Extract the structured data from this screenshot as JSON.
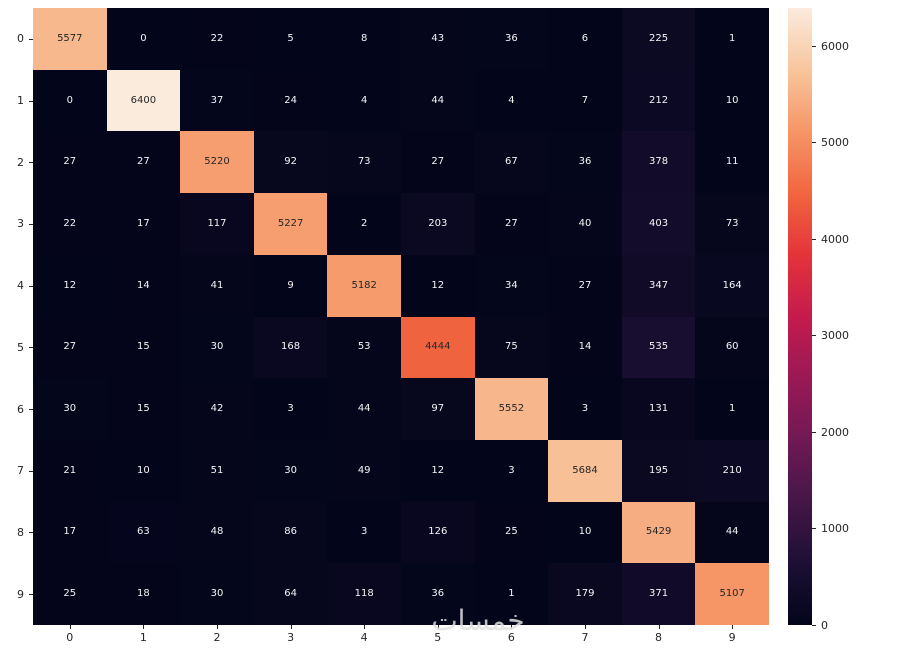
{
  "chart_data": {
    "type": "heatmap",
    "title": "",
    "xlabel": "",
    "ylabel": "",
    "x_labels": [
      "0",
      "1",
      "2",
      "3",
      "4",
      "5",
      "6",
      "7",
      "8",
      "9"
    ],
    "y_labels": [
      "0",
      "1",
      "2",
      "3",
      "4",
      "5",
      "6",
      "7",
      "8",
      "9"
    ],
    "matrix": [
      [
        5577,
        0,
        22,
        5,
        8,
        43,
        36,
        6,
        225,
        1
      ],
      [
        0,
        6400,
        37,
        24,
        4,
        44,
        4,
        7,
        212,
        10
      ],
      [
        27,
        27,
        5220,
        92,
        73,
        27,
        67,
        36,
        378,
        11
      ],
      [
        22,
        17,
        117,
        5227,
        2,
        203,
        27,
        40,
        403,
        73
      ],
      [
        12,
        14,
        41,
        9,
        5182,
        12,
        34,
        27,
        347,
        164
      ],
      [
        27,
        15,
        30,
        168,
        53,
        4444,
        75,
        14,
        535,
        60
      ],
      [
        30,
        15,
        42,
        3,
        44,
        97,
        5552,
        3,
        131,
        1
      ],
      [
        21,
        10,
        51,
        30,
        49,
        12,
        3,
        5684,
        195,
        210
      ],
      [
        17,
        63,
        48,
        86,
        3,
        126,
        25,
        10,
        5429,
        44
      ],
      [
        25,
        18,
        30,
        64,
        118,
        36,
        1,
        179,
        371,
        5107
      ]
    ],
    "vmin": 0,
    "vmax": 6400,
    "colorbar_ticks": [
      0,
      1000,
      2000,
      3000,
      4000,
      5000,
      6000
    ],
    "colormap": "rocket",
    "colormap_stops": [
      [
        0.0,
        3,
        5,
        26
      ],
      [
        0.1,
        28,
        16,
        52
      ],
      [
        0.2,
        69,
        22,
        71
      ],
      [
        0.3,
        112,
        25,
        84
      ],
      [
        0.4,
        154,
        25,
        85
      ],
      [
        0.5,
        197,
        27,
        77
      ],
      [
        0.6,
        228,
        52,
        58
      ],
      [
        0.7,
        241,
        102,
        63
      ],
      [
        0.8,
        246,
        150,
        103
      ],
      [
        0.9,
        247,
        198,
        157
      ],
      [
        1.0,
        250,
        235,
        221
      ]
    ],
    "legend_position": "right-colorbar",
    "grid": false,
    "annotation_dark_text_color": "#262626",
    "annotation_light_text_color": "#f5f5f5",
    "tick_color": "#262626"
  },
  "watermark": {
    "text": "خمسات"
  }
}
